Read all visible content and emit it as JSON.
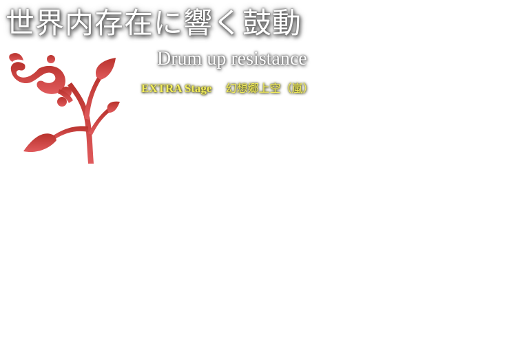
{
  "music_title_jp": "世界内存在に響く鼓動",
  "music_title_en": "Drum up resistance",
  "stage_level": "EXTRA Stage",
  "stage_location": "幻想郷上空（嵐）",
  "colors": {
    "emblem_top": "#b8322c",
    "emblem_bottom": "#e05a5c",
    "stage_text": "#f2ec5a",
    "title_text": "#ffffff"
  },
  "icons": {
    "emblem": "red-flower-sprout-emblem"
  }
}
